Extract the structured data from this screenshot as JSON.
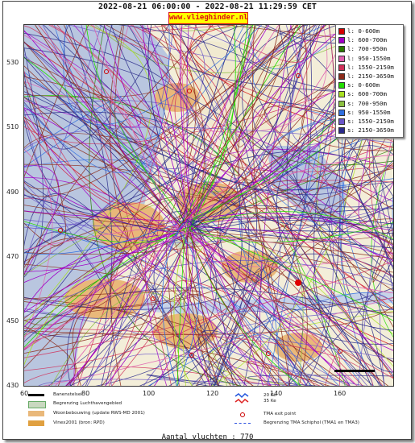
{
  "header": {
    "date_range": "2022-08-21 06:00:00 - 2022-08-21 11:29:59 CET",
    "brand": "www.vlieghinder.nl"
  },
  "map": {
    "y_ticks": [
      "530",
      "510",
      "490",
      "470",
      "450",
      "430"
    ],
    "x_ticks": [
      "60",
      "80",
      "100",
      "120",
      "140",
      "160"
    ],
    "colors": {
      "sea": "#b9c6df",
      "land": "#f3eed9",
      "urban": "#e9b87a",
      "airport": "#c9d8c0"
    }
  },
  "legend": {
    "entries": [
      {
        "label": "l: 0-600m",
        "color": "#d40000"
      },
      {
        "label": "l: 600-700m",
        "color": "#a000c8"
      },
      {
        "label": "l: 700-950m",
        "color": "#2a7a00"
      },
      {
        "label": "l: 950-1550m",
        "color": "#e060b0"
      },
      {
        "label": "l: 1550-2150m",
        "color": "#d0305a"
      },
      {
        "label": "l: 2150-3650m",
        "color": "#8b2a1a"
      },
      {
        "label": "s: 0-600m",
        "color": "#22dd00"
      },
      {
        "label": "s: 600-700m",
        "color": "#a8e020"
      },
      {
        "label": "s: 700-950m",
        "color": "#8cc040"
      },
      {
        "label": "s: 950-1550m",
        "color": "#3070e0"
      },
      {
        "label": "s: 1550-2150m",
        "color": "#6a56c8"
      },
      {
        "label": "s: 2150-3650m",
        "color": "#2a2a8a"
      }
    ]
  },
  "key": {
    "runway": "Banenstelsel",
    "airport_boundary": "Begrenzing Luchthavengebied",
    "housing": "Woonbebouwing (update RWS-MD 2001)",
    "vinex": "Vinex2001 (bron: RPD)",
    "noise_20": "20 Ke",
    "noise_35": "35 Ke",
    "tma_exit": "TMA exit point",
    "tma_boundary": "Begrenzing TMA Schiphol  (TMA1 en TMA3)"
  },
  "footer": {
    "flight_count": "Aantal vluchten : 770"
  }
}
